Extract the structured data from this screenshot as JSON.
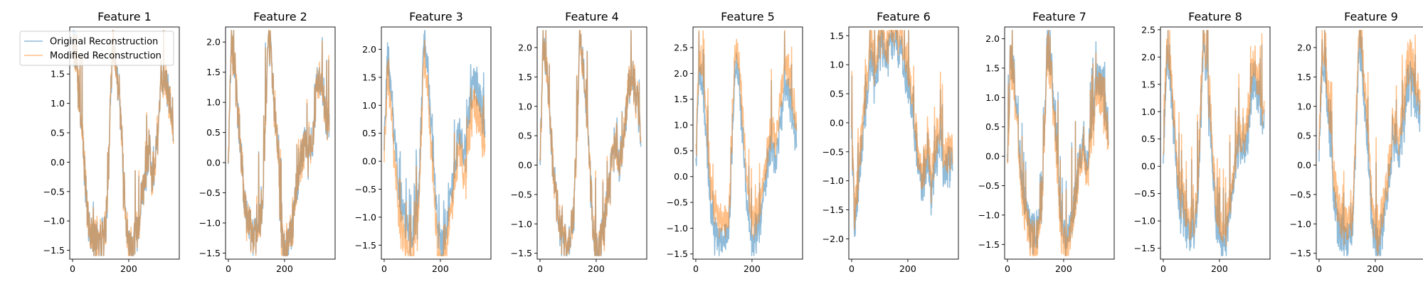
{
  "colors": {
    "original": "#1f77b4",
    "modified": "#ff7f0e",
    "background": "#ffffff"
  },
  "legend": {
    "location": "upper-left",
    "entries": [
      {
        "key": "original",
        "label": "Original Reconstruction"
      },
      {
        "key": "modified",
        "label": "Modified Reconstruction"
      }
    ]
  },
  "chart_data": {
    "type": "line",
    "layout": "1x9 subplots",
    "series_names": [
      "Original Reconstruction",
      "Modified Reconstruction"
    ],
    "line_alpha": 0.5,
    "grid": false,
    "xlim": [
      -10,
      380
    ],
    "xticks": [
      0,
      200
    ],
    "xtick_labels": [
      "0",
      "200"
    ],
    "n_points": 360,
    "panels": [
      {
        "title": "Feature 1",
        "ylim": [
          -1.65,
          2.3
        ],
        "yticks": [
          -1.5,
          -1.0,
          -0.5,
          0.0,
          0.5,
          1.0,
          1.5
        ],
        "ytick_labels": [
          "−1.5",
          "−1.0",
          "−0.5",
          "0.0",
          "0.5",
          "1.0",
          "1.5"
        ],
        "offset": 0.0,
        "wave": [
          2.0,
          1.9,
          1.3,
          0.6,
          -0.2,
          -0.9,
          -1.2,
          -1.4,
          -1.3,
          -1.4,
          -1.2,
          -1.0,
          0.2,
          1.9,
          1.8,
          1.2,
          0.6,
          -0.6,
          -1.3,
          -1.45,
          -1.4,
          -1.2,
          -0.9,
          -0.5,
          0.0,
          0.2,
          -0.3,
          0.1,
          0.5,
          1.4,
          1.5,
          1.2,
          1.0,
          0.6
        ]
      },
      {
        "title": "Feature 2",
        "ylim": [
          -1.6,
          2.25
        ],
        "yticks": [
          -1.5,
          -1.0,
          -0.5,
          0.0,
          0.5,
          1.0,
          1.5,
          2.0
        ],
        "ytick_labels": [
          "−1.5",
          "−1.0",
          "−0.5",
          "0.0",
          "0.5",
          "1.0",
          "1.5",
          "2.0"
        ],
        "offset": 0.0,
        "wave": [
          0.0,
          1.9,
          1.6,
          0.9,
          0.2,
          -0.5,
          -0.9,
          -1.1,
          -1.2,
          -1.3,
          -1.1,
          -0.9,
          0.4,
          2.0,
          1.8,
          1.0,
          0.3,
          -0.7,
          -1.3,
          -1.4,
          -1.3,
          -1.0,
          -0.6,
          -0.2,
          0.1,
          0.4,
          0.0,
          0.3,
          0.6,
          1.3,
          1.4,
          1.0,
          0.8,
          0.5
        ]
      },
      {
        "title": "Feature 3",
        "ylim": [
          -1.75,
          2.4
        ],
        "yticks": [
          -1.5,
          -1.0,
          -0.5,
          0.0,
          0.5,
          1.0,
          1.5,
          2.0
        ],
        "ytick_labels": [
          "−1.5",
          "−1.0",
          "−0.5",
          "0.0",
          "0.5",
          "1.0",
          "1.5",
          "2.0"
        ],
        "offset": -0.45,
        "wave": [
          0.2,
          1.8,
          1.4,
          0.7,
          0.0,
          -0.5,
          -0.9,
          -1.1,
          -1.2,
          -1.3,
          -1.1,
          -0.8,
          0.6,
          2.2,
          1.8,
          0.9,
          0.2,
          -0.8,
          -1.4,
          -1.5,
          -1.3,
          -1.0,
          -0.6,
          -0.1,
          0.3,
          0.5,
          0.1,
          0.5,
          0.9,
          1.4,
          1.5,
          1.2,
          0.9,
          0.5
        ]
      },
      {
        "title": "Feature 4",
        "ylim": [
          -1.6,
          2.35
        ],
        "yticks": [
          -1.5,
          -1.0,
          -0.5,
          0.0,
          0.5,
          1.0,
          1.5,
          2.0
        ],
        "ytick_labels": [
          "−1.5",
          "−1.0",
          "−0.5",
          "0.0",
          "0.5",
          "1.0",
          "1.5",
          "2.0"
        ],
        "offset": 0.0,
        "wave": [
          0.1,
          2.0,
          1.7,
          1.0,
          0.2,
          -0.5,
          -0.9,
          -1.2,
          -1.3,
          -1.35,
          -1.2,
          -0.9,
          0.5,
          2.1,
          1.8,
          1.1,
          0.3,
          -0.8,
          -1.3,
          -1.4,
          -1.3,
          -1.0,
          -0.6,
          -0.2,
          0.2,
          0.4,
          0.0,
          0.4,
          0.8,
          1.3,
          1.5,
          1.3,
          1.0,
          0.6
        ]
      },
      {
        "title": "Feature 5",
        "ylim": [
          -1.6,
          2.9
        ],
        "yticks": [
          -1.5,
          -1.0,
          -0.5,
          0.0,
          0.5,
          1.0,
          1.5,
          2.0,
          2.5
        ],
        "ytick_labels": [
          "−1.5",
          "−1.0",
          "−0.5",
          "0.0",
          "0.5",
          "1.0",
          "1.5",
          "2.0",
          "2.5"
        ],
        "offset": 0.45,
        "wave": [
          0.0,
          2.2,
          1.8,
          1.0,
          0.1,
          -0.6,
          -1.0,
          -1.2,
          -1.3,
          -1.25,
          -1.1,
          -0.8,
          0.7,
          2.3,
          1.9,
          1.0,
          0.2,
          -0.8,
          -1.3,
          -1.3,
          -1.2,
          -0.9,
          -0.5,
          0.0,
          0.4,
          0.6,
          0.2,
          0.7,
          1.1,
          1.6,
          1.7,
          1.4,
          1.0,
          0.7
        ]
      },
      {
        "title": "Feature 6",
        "ylim": [
          -2.35,
          1.65
        ],
        "yticks": [
          -2.0,
          -1.5,
          -1.0,
          -0.5,
          0.0,
          0.5,
          1.0,
          1.5
        ],
        "ytick_labels": [
          "−2.0",
          "−1.5",
          "−1.0",
          "−0.5",
          "0.0",
          "0.5",
          "1.0",
          "1.5"
        ],
        "offset": 0.3,
        "wave": [
          -0.3,
          -1.8,
          -1.2,
          -0.6,
          0.0,
          0.5,
          0.9,
          1.1,
          0.6,
          1.2,
          1.3,
          1.0,
          1.3,
          1.4,
          1.35,
          1.3,
          1.2,
          1.0,
          0.8,
          0.5,
          0.2,
          -0.3,
          -0.8,
          -1.2,
          -0.9,
          -0.5,
          -1.3,
          -1.0,
          -0.5,
          -0.2,
          -0.8,
          -0.9,
          -0.7,
          -0.6
        ]
      },
      {
        "title": "Feature 7",
        "ylim": [
          -1.75,
          2.2
        ],
        "yticks": [
          -1.5,
          -1.0,
          -0.5,
          0.0,
          0.5,
          1.0,
          1.5,
          2.0
        ],
        "ytick_labels": [
          "−1.5",
          "−1.0",
          "−0.5",
          "0.0",
          "0.5",
          "1.0",
          "1.5",
          "2.0"
        ],
        "offset": -0.2,
        "wave": [
          0.0,
          1.8,
          1.5,
          0.8,
          0.1,
          -0.5,
          -0.9,
          -1.2,
          -1.3,
          -1.4,
          -1.2,
          -1.0,
          0.3,
          1.9,
          1.7,
          1.0,
          0.3,
          -0.7,
          -1.3,
          -1.4,
          -1.35,
          -1.1,
          -0.7,
          -0.3,
          0.1,
          0.3,
          -0.1,
          0.3,
          0.6,
          1.2,
          1.4,
          1.1,
          0.8,
          0.5
        ]
      },
      {
        "title": "Feature 8",
        "ylim": [
          -1.7,
          2.55
        ],
        "yticks": [
          -1.5,
          -1.0,
          -0.5,
          0.0,
          0.5,
          1.0,
          1.5,
          2.0,
          2.5
        ],
        "ytick_labels": [
          "−1.5",
          "−1.0",
          "−0.5",
          "0.0",
          "0.5",
          "1.0",
          "1.5",
          "2.0",
          "2.5"
        ],
        "offset": 0.3,
        "wave": [
          0.0,
          2.0,
          1.7,
          1.0,
          0.2,
          -0.5,
          -0.9,
          -1.1,
          -1.2,
          -1.3,
          -1.1,
          -0.9,
          0.4,
          2.1,
          1.8,
          1.1,
          0.3,
          -0.8,
          -1.4,
          -1.5,
          -1.4,
          -1.1,
          -0.7,
          -0.2,
          0.2,
          0.4,
          0.0,
          0.4,
          0.8,
          1.4,
          1.6,
          1.3,
          1.0,
          0.7
        ]
      },
      {
        "title": "Feature 9",
        "ylim": [
          -1.6,
          2.35
        ],
        "yticks": [
          -1.5,
          -1.0,
          -0.5,
          0.0,
          0.5,
          1.0,
          1.5,
          2.0
        ],
        "ytick_labels": [
          "−1.5",
          "−1.0",
          "−0.5",
          "0.0",
          "0.5",
          "1.0",
          "1.5",
          "2.0"
        ],
        "offset": 0.35,
        "wave": [
          0.0,
          1.9,
          1.6,
          0.9,
          0.1,
          -0.6,
          -1.0,
          -1.2,
          -1.3,
          -1.35,
          -1.2,
          -1.0,
          0.4,
          2.0,
          1.8,
          1.0,
          0.3,
          -0.8,
          -1.3,
          -1.4,
          -1.3,
          -1.0,
          -0.6,
          -0.1,
          0.3,
          0.5,
          0.1,
          0.5,
          0.9,
          1.4,
          1.5,
          1.3,
          1.1,
          0.8
        ]
      }
    ]
  }
}
